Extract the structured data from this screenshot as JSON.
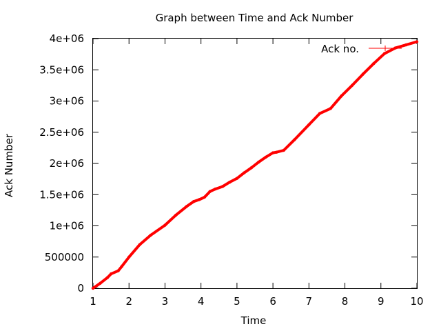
{
  "chart_data": {
    "type": "line",
    "title": "Graph between Time and Ack Number",
    "xlabel": "Time",
    "ylabel": "Ack Number",
    "xlim": [
      1,
      10
    ],
    "ylim": [
      0,
      4000000
    ],
    "x_ticks": [
      1,
      2,
      3,
      4,
      5,
      6,
      7,
      8,
      9,
      10
    ],
    "x_tick_labels": [
      "1",
      "2",
      "3",
      "4",
      "5",
      "6",
      "7",
      "8",
      "9",
      "10"
    ],
    "y_ticks": [
      0,
      500000,
      1000000,
      1500000,
      2000000,
      2500000,
      3000000,
      3500000,
      4000000
    ],
    "y_tick_labels": [
      "0",
      "500000",
      "1e+06",
      "1.5e+06",
      "2e+06",
      "2.5e+06",
      "3e+06",
      "3.5e+06",
      "4e+06"
    ],
    "grid": false,
    "legend_position": "top-right",
    "series": [
      {
        "name": "Ack no.",
        "color": "#ff0000",
        "x": [
          1.0,
          1.2,
          1.4,
          1.5,
          1.7,
          1.8,
          2.0,
          2.3,
          2.6,
          3.0,
          3.3,
          3.6,
          3.8,
          3.95,
          4.1,
          4.25,
          4.4,
          4.6,
          4.8,
          5.0,
          5.2,
          5.4,
          5.6,
          5.8,
          6.0,
          6.1,
          6.3,
          6.6,
          7.0,
          7.3,
          7.6,
          7.9,
          8.2,
          8.5,
          8.8,
          9.1,
          9.4,
          9.7,
          10.0
        ],
        "y": [
          0,
          80000,
          170000,
          230000,
          280000,
          350000,
          500000,
          700000,
          850000,
          1010000,
          1170000,
          1310000,
          1390000,
          1420000,
          1460000,
          1550000,
          1590000,
          1630000,
          1700000,
          1760000,
          1850000,
          1930000,
          2020000,
          2100000,
          2170000,
          2180000,
          2210000,
          2380000,
          2620000,
          2800000,
          2880000,
          3080000,
          3250000,
          3430000,
          3600000,
          3760000,
          3850000,
          3900000,
          3950000
        ]
      }
    ]
  }
}
